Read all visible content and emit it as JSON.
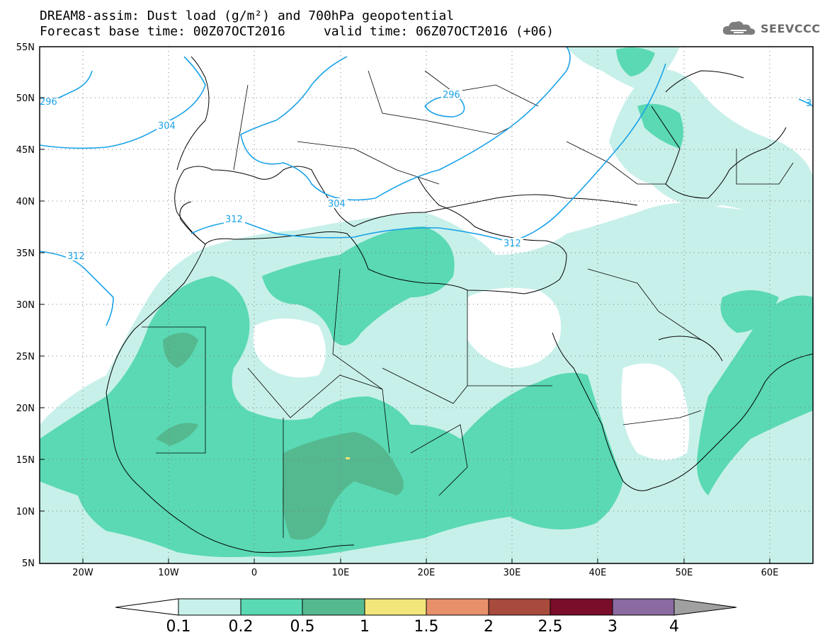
{
  "header": {
    "line1": "DREAM8-assim: Dust load (g/m²) and 700hPa geopotential",
    "line2_base": "Forecast base time: 00Z07OCT2016",
    "line2_valid": "valid time: 06Z07OCT2016 (+06)"
  },
  "logo": {
    "text": "SEEVCCC",
    "icon": "cloud-icon"
  },
  "map": {
    "lat_labels": [
      "55N",
      "50N",
      "45N",
      "40N",
      "35N",
      "30N",
      "25N",
      "20N",
      "15N",
      "10N",
      "5N"
    ],
    "lon_labels": [
      "20W",
      "10W",
      "0",
      "10E",
      "20E",
      "30E",
      "40E",
      "50E",
      "60E"
    ],
    "contour_labels": [
      "296",
      "304",
      "296",
      "304",
      "312",
      "312",
      "312",
      "3"
    ]
  },
  "legend": {
    "ticks": [
      "0.1",
      "0.2",
      "0.5",
      "1",
      "1.5",
      "2",
      "2.5",
      "3",
      "4"
    ],
    "colors": [
      "#c8f0ea",
      "#5ad9b4",
      "#55b98f",
      "#f2e67a",
      "#e8906a",
      "#a84a3c",
      "#7a0d2a",
      "#8a6aa0",
      "#a0a0a0"
    ]
  },
  "colors": {
    "dust_light": "#c8f0ea",
    "dust_medium": "#5ad9b4",
    "dust_dark": "#55b98f",
    "contour": "#1aa3e8"
  }
}
